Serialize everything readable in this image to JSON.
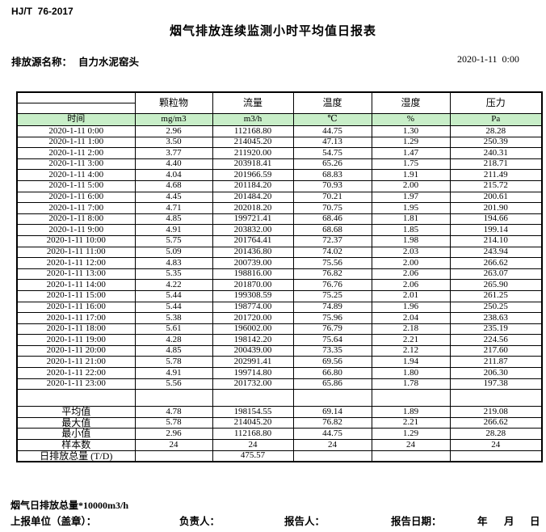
{
  "header": {
    "standard": "HJ/T  76-2017",
    "title": "烟气排放连续监测小时平均值日报表",
    "source_label": "排放源名称：",
    "source_name": "自力水泥窑头",
    "datetime": "2020-1-11  0:00"
  },
  "table": {
    "time_header": "时间",
    "column_headers": [
      "颗粒物",
      "流量",
      "温度",
      "湿度",
      "压力"
    ],
    "units": [
      "mg/m3",
      "m3/h",
      "℃",
      "%",
      "Pa"
    ],
    "rows": [
      {
        "time": "2020-1-11  0:00",
        "values": [
          "2.96",
          "112168.80",
          "44.75",
          "1.30",
          "28.28"
        ]
      },
      {
        "time": "2020-1-11  1:00",
        "values": [
          "3.50",
          "214045.20",
          "47.13",
          "1.29",
          "250.39"
        ]
      },
      {
        "time": "2020-1-11  2:00",
        "values": [
          "3.77",
          "211920.00",
          "54.75",
          "1.47",
          "240.31"
        ]
      },
      {
        "time": "2020-1-11  3:00",
        "values": [
          "4.40",
          "203918.41",
          "65.26",
          "1.75",
          "218.71"
        ]
      },
      {
        "time": "2020-1-11  4:00",
        "values": [
          "4.04",
          "201966.59",
          "68.83",
          "1.91",
          "211.49"
        ]
      },
      {
        "time": "2020-1-11  5:00",
        "values": [
          "4.68",
          "201184.20",
          "70.93",
          "2.00",
          "215.72"
        ]
      },
      {
        "time": "2020-1-11  6:00",
        "values": [
          "4.45",
          "201484.20",
          "70.21",
          "1.97",
          "200.61"
        ]
      },
      {
        "time": "2020-1-11  7:00",
        "values": [
          "4.71",
          "202018.20",
          "70.75",
          "1.95",
          "201.90"
        ]
      },
      {
        "time": "2020-1-11  8:00",
        "values": [
          "4.85",
          "199721.41",
          "68.46",
          "1.81",
          "194.66"
        ]
      },
      {
        "time": "2020-1-11  9:00",
        "values": [
          "4.91",
          "203832.00",
          "68.68",
          "1.85",
          "199.14"
        ]
      },
      {
        "time": "2020-1-11 10:00",
        "values": [
          "5.75",
          "201764.41",
          "72.37",
          "1.98",
          "214.10"
        ]
      },
      {
        "time": "2020-1-11 11:00",
        "values": [
          "5.09",
          "201436.80",
          "74.02",
          "2.03",
          "243.94"
        ]
      },
      {
        "time": "2020-1-11 12:00",
        "values": [
          "4.83",
          "200739.00",
          "75.56",
          "2.00",
          "266.62"
        ]
      },
      {
        "time": "2020-1-11 13:00",
        "values": [
          "5.35",
          "198816.00",
          "76.82",
          "2.06",
          "263.07"
        ]
      },
      {
        "time": "2020-1-11 14:00",
        "values": [
          "4.22",
          "201870.00",
          "76.76",
          "2.06",
          "265.90"
        ]
      },
      {
        "time": "2020-1-11 15:00",
        "values": [
          "5.44",
          "199308.59",
          "75.25",
          "2.01",
          "261.25"
        ]
      },
      {
        "time": "2020-1-11 16:00",
        "values": [
          "5.44",
          "198774.00",
          "74.89",
          "1.96",
          "250.25"
        ]
      },
      {
        "time": "2020-1-11 17:00",
        "values": [
          "5.38",
          "201720.00",
          "75.96",
          "2.04",
          "238.63"
        ]
      },
      {
        "time": "2020-1-11 18:00",
        "values": [
          "5.61",
          "196002.00",
          "76.79",
          "2.18",
          "235.19"
        ]
      },
      {
        "time": "2020-1-11 19:00",
        "values": [
          "4.28",
          "198142.20",
          "75.64",
          "2.21",
          "224.56"
        ]
      },
      {
        "time": "2020-1-11 20:00",
        "values": [
          "4.85",
          "200439.00",
          "73.35",
          "2.12",
          "217.60"
        ]
      },
      {
        "time": "2020-1-11 21:00",
        "values": [
          "5.78",
          "202991.41",
          "69.56",
          "1.94",
          "211.87"
        ]
      },
      {
        "time": "2020-1-11 22:00",
        "values": [
          "4.91",
          "199714.80",
          "66.80",
          "1.80",
          "206.30"
        ]
      },
      {
        "time": "2020-1-11 23:00",
        "values": [
          "5.56",
          "201732.00",
          "65.86",
          "1.78",
          "197.38"
        ]
      }
    ],
    "summary": [
      {
        "label": "平均值",
        "values": [
          "4.78",
          "198154.55",
          "69.14",
          "1.89",
          "219.08"
        ]
      },
      {
        "label": "最大值",
        "values": [
          "5.78",
          "214045.20",
          "76.82",
          "2.21",
          "266.62"
        ]
      },
      {
        "label": "最小值",
        "values": [
          "2.96",
          "112168.80",
          "44.75",
          "1.29",
          "28.28"
        ]
      },
      {
        "label": "样本数",
        "values": [
          "24",
          "24",
          "24",
          "24",
          "24"
        ]
      },
      {
        "label": "日排放总量 (T/D)",
        "values": [
          "",
          "475.57",
          "",
          "",
          ""
        ]
      }
    ]
  },
  "footer": {
    "note": "烟气日排放总量*10000m3/h",
    "report_unit_label": "上报单位（盖章）：",
    "responsible_label": "负责人：",
    "reporter_label": "报告人：",
    "report_date_label": "报告日期：",
    "year_label": "年",
    "month_label": "月",
    "day_label": "日"
  },
  "colors": {
    "unit_row_green": "#c8eec8",
    "border_black": "#000000"
  }
}
